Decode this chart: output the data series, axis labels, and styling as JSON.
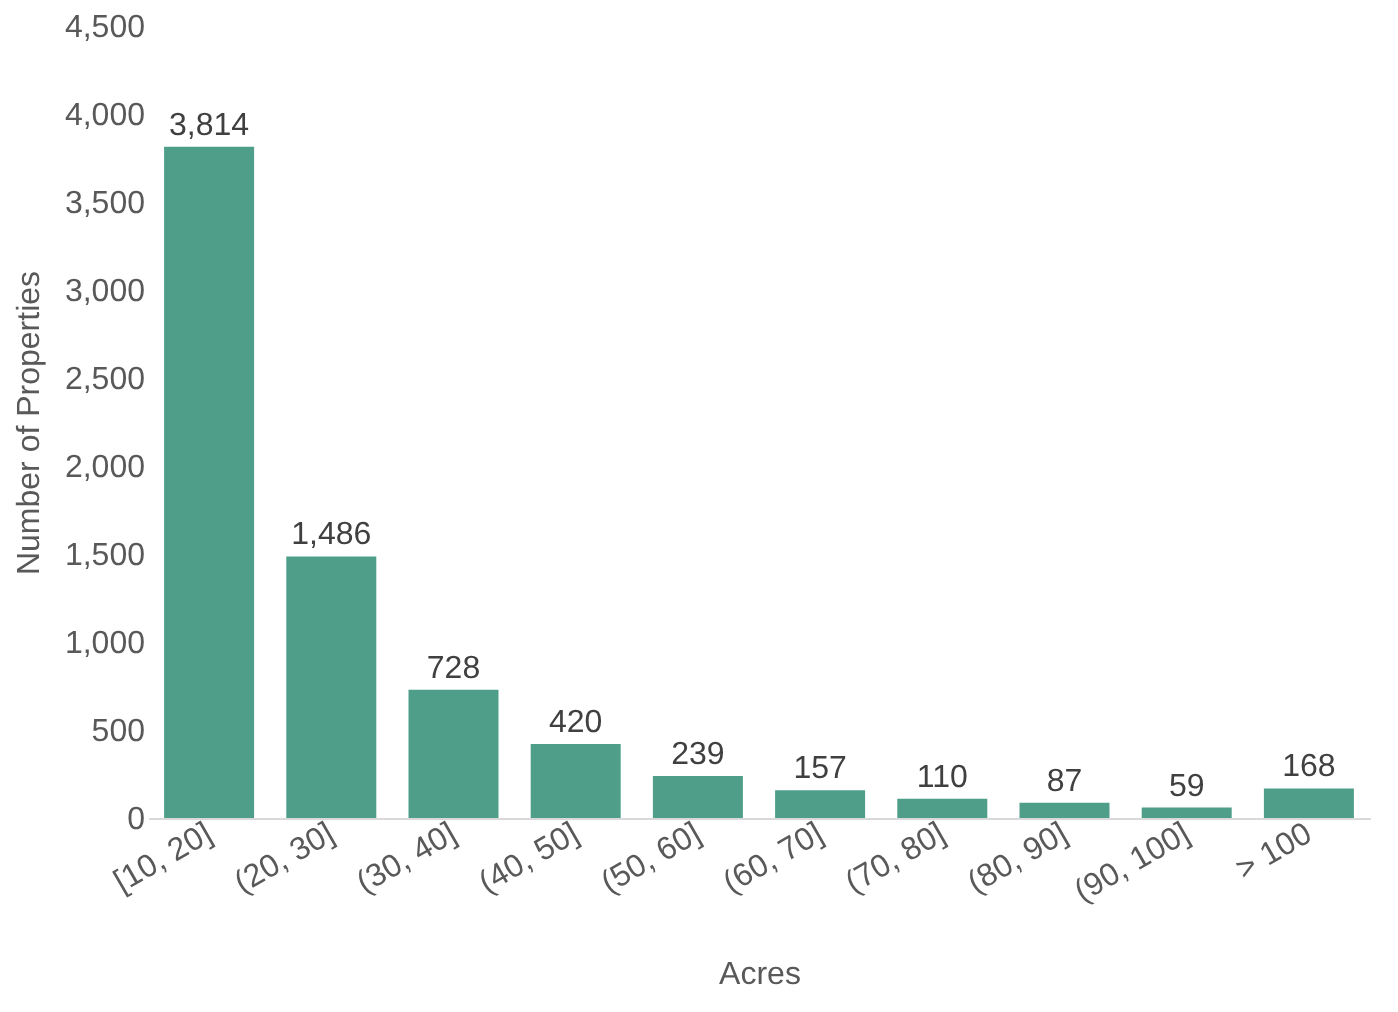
{
  "chart_data": {
    "type": "bar",
    "xlabel": "Acres",
    "ylabel": "Number of Properties",
    "categories": [
      "[10, 20]",
      "(20, 30]",
      "(30, 40]",
      "(40, 50]",
      "(50, 60]",
      "(60, 70]",
      "(70, 80]",
      "(80, 90]",
      "(90, 100]",
      "> 100"
    ],
    "values": [
      3814,
      1486,
      728,
      420,
      239,
      157,
      110,
      87,
      59,
      168
    ],
    "value_labels": [
      "3,814",
      "1,486",
      "728",
      "420",
      "239",
      "157",
      "110",
      "87",
      "59",
      "168"
    ],
    "color": "#4e9e8a",
    "ylim": [
      0,
      4500
    ],
    "yticks": [
      0,
      {
        "value": 500,
        "label": "500"
      },
      {
        "value": 1000,
        "label": "1,000"
      },
      {
        "value": 1500,
        "label": "1,500"
      },
      {
        "value": 2000,
        "label": "2,000"
      },
      {
        "value": 2500,
        "label": "2,500"
      },
      {
        "value": 3000,
        "label": "3,000"
      },
      {
        "value": 3500,
        "label": "3,500"
      },
      {
        "value": 4000,
        "label": "4,000"
      },
      {
        "value": 4500,
        "label": "4,500"
      }
    ],
    "grid": false
  }
}
